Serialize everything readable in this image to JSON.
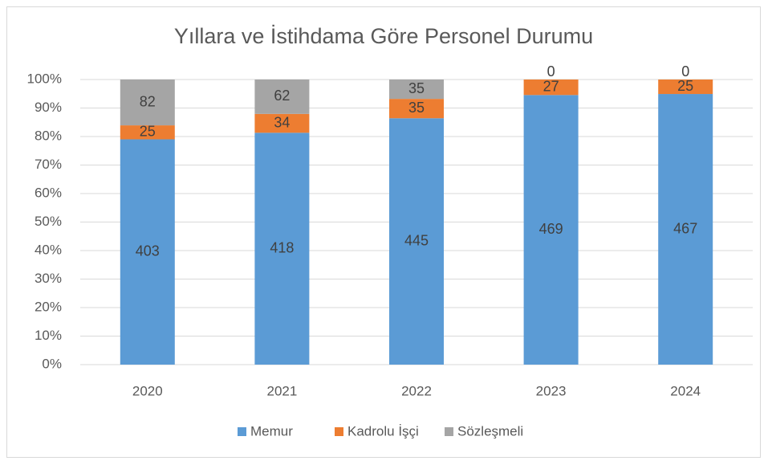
{
  "chart_data": {
    "type": "bar",
    "stacking": "percent",
    "title": "Yıllara ve İstihdama Göre Personel Durumu",
    "categories": [
      "2020",
      "2021",
      "2022",
      "2023",
      "2024"
    ],
    "series": [
      {
        "name": "Memur",
        "color": "#5b9bd5",
        "values": [
          403,
          418,
          445,
          469,
          467
        ]
      },
      {
        "name": "Kadrolu İşçi",
        "color": "#ed7d31",
        "values": [
          25,
          34,
          35,
          27,
          25
        ]
      },
      {
        "name": "Sözleşmeli",
        "color": "#a5a5a5",
        "values": [
          82,
          62,
          35,
          0,
          0
        ]
      }
    ],
    "ylim": [
      0,
      100
    ],
    "yticks": [
      {
        "value": 0,
        "label": "0%"
      },
      {
        "value": 10,
        "label": "10%"
      },
      {
        "value": 20,
        "label": "20%"
      },
      {
        "value": 30,
        "label": "30%"
      },
      {
        "value": 40,
        "label": "40%"
      },
      {
        "value": 50,
        "label": "50%"
      },
      {
        "value": 60,
        "label": "60%"
      },
      {
        "value": 70,
        "label": "70%"
      },
      {
        "value": 80,
        "label": "80%"
      },
      {
        "value": 90,
        "label": "90%"
      },
      {
        "value": 100,
        "label": "100%"
      }
    ],
    "grid": true,
    "legend": "bottom"
  }
}
